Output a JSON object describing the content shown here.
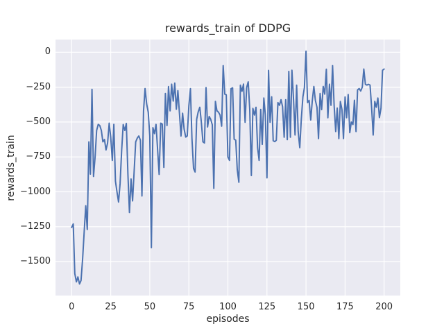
{
  "colors": {
    "figure_bg": "#ffffff",
    "plot_bg": "#eaeaf2",
    "grid": "#ffffff",
    "line": "#4c72b0",
    "text": "#262626"
  },
  "chart_data": {
    "type": "line",
    "title": "rewards_train of DDPG",
    "xlabel": "episodes",
    "ylabel": "rewards_train",
    "x_ticks": [
      0,
      25,
      50,
      75,
      100,
      125,
      150,
      175,
      200
    ],
    "x_tick_labels": [
      "0",
      "25",
      "50",
      "75",
      "100",
      "125",
      "150",
      "175",
      "200"
    ],
    "y_ticks": [
      0,
      -250,
      -500,
      -750,
      -1000,
      -1250,
      -1500
    ],
    "y_tick_labels": [
      "0",
      "−250",
      "−500",
      "−750",
      "−1000",
      "−1250",
      "−1500"
    ],
    "xlim": [
      -10.35,
      210.35
    ],
    "ylim": [
      -1743,
      91
    ],
    "grid": true,
    "legend_position": "none",
    "series": [
      {
        "name": "rewards_train",
        "x_start": 0,
        "x_step": 1,
        "values": [
          -1255,
          -1230,
          -1585,
          -1645,
          -1610,
          -1660,
          -1635,
          -1480,
          -1290,
          -1100,
          -1270,
          -642,
          -873,
          -266,
          -890,
          -750,
          -560,
          -517,
          -525,
          -560,
          -642,
          -625,
          -700,
          -650,
          -508,
          -608,
          -775,
          -517,
          -923,
          -1000,
          -1073,
          -941,
          -700,
          -518,
          -560,
          -510,
          -875,
          -1148,
          -908,
          -1065,
          -850,
          -642,
          -615,
          -600,
          -630,
          -1030,
          -420,
          -260,
          -370,
          -430,
          -600,
          -1400,
          -540,
          -583,
          -517,
          -700,
          -875,
          -508,
          -515,
          -825,
          -295,
          -525,
          -246,
          -420,
          -229,
          -350,
          -221,
          -408,
          -275,
          -440,
          -600,
          -437,
          -550,
          -608,
          -600,
          -386,
          -261,
          -620,
          -833,
          -858,
          -480,
          -427,
          -394,
          -500,
          -642,
          -650,
          -253,
          -535,
          -460,
          -480,
          -520,
          -975,
          -352,
          -420,
          -430,
          -450,
          -530,
          -96,
          -300,
          -305,
          -750,
          -775,
          -261,
          -255,
          -623,
          -630,
          -841,
          -932,
          -236,
          -280,
          -228,
          -502,
          -253,
          -212,
          -410,
          -883,
          -402,
          -450,
          -394,
          -684,
          -775,
          -410,
          -660,
          -328,
          -450,
          -900,
          -130,
          -502,
          -319,
          -634,
          -640,
          -630,
          -361,
          -380,
          -340,
          -390,
          -609,
          -340,
          -626,
          -137,
          -609,
          -129,
          -336,
          -593,
          -236,
          -568,
          -684,
          -480,
          -320,
          -253,
          8,
          -361,
          -345,
          -485,
          -350,
          -245,
          -345,
          -394,
          -618,
          -295,
          -411,
          -245,
          -300,
          -121,
          -469,
          -229,
          -380,
          -96,
          -378,
          -568,
          -400,
          -618,
          -353,
          -410,
          -618,
          -320,
          -469,
          -303,
          -576,
          -500,
          -518,
          -344,
          -568,
          -270,
          -260,
          -278,
          -250,
          -120,
          -230,
          -235,
          -230,
          -235,
          -400,
          -593,
          -352,
          -394,
          -328,
          -468,
          -400,
          -129,
          -120
        ]
      }
    ]
  }
}
